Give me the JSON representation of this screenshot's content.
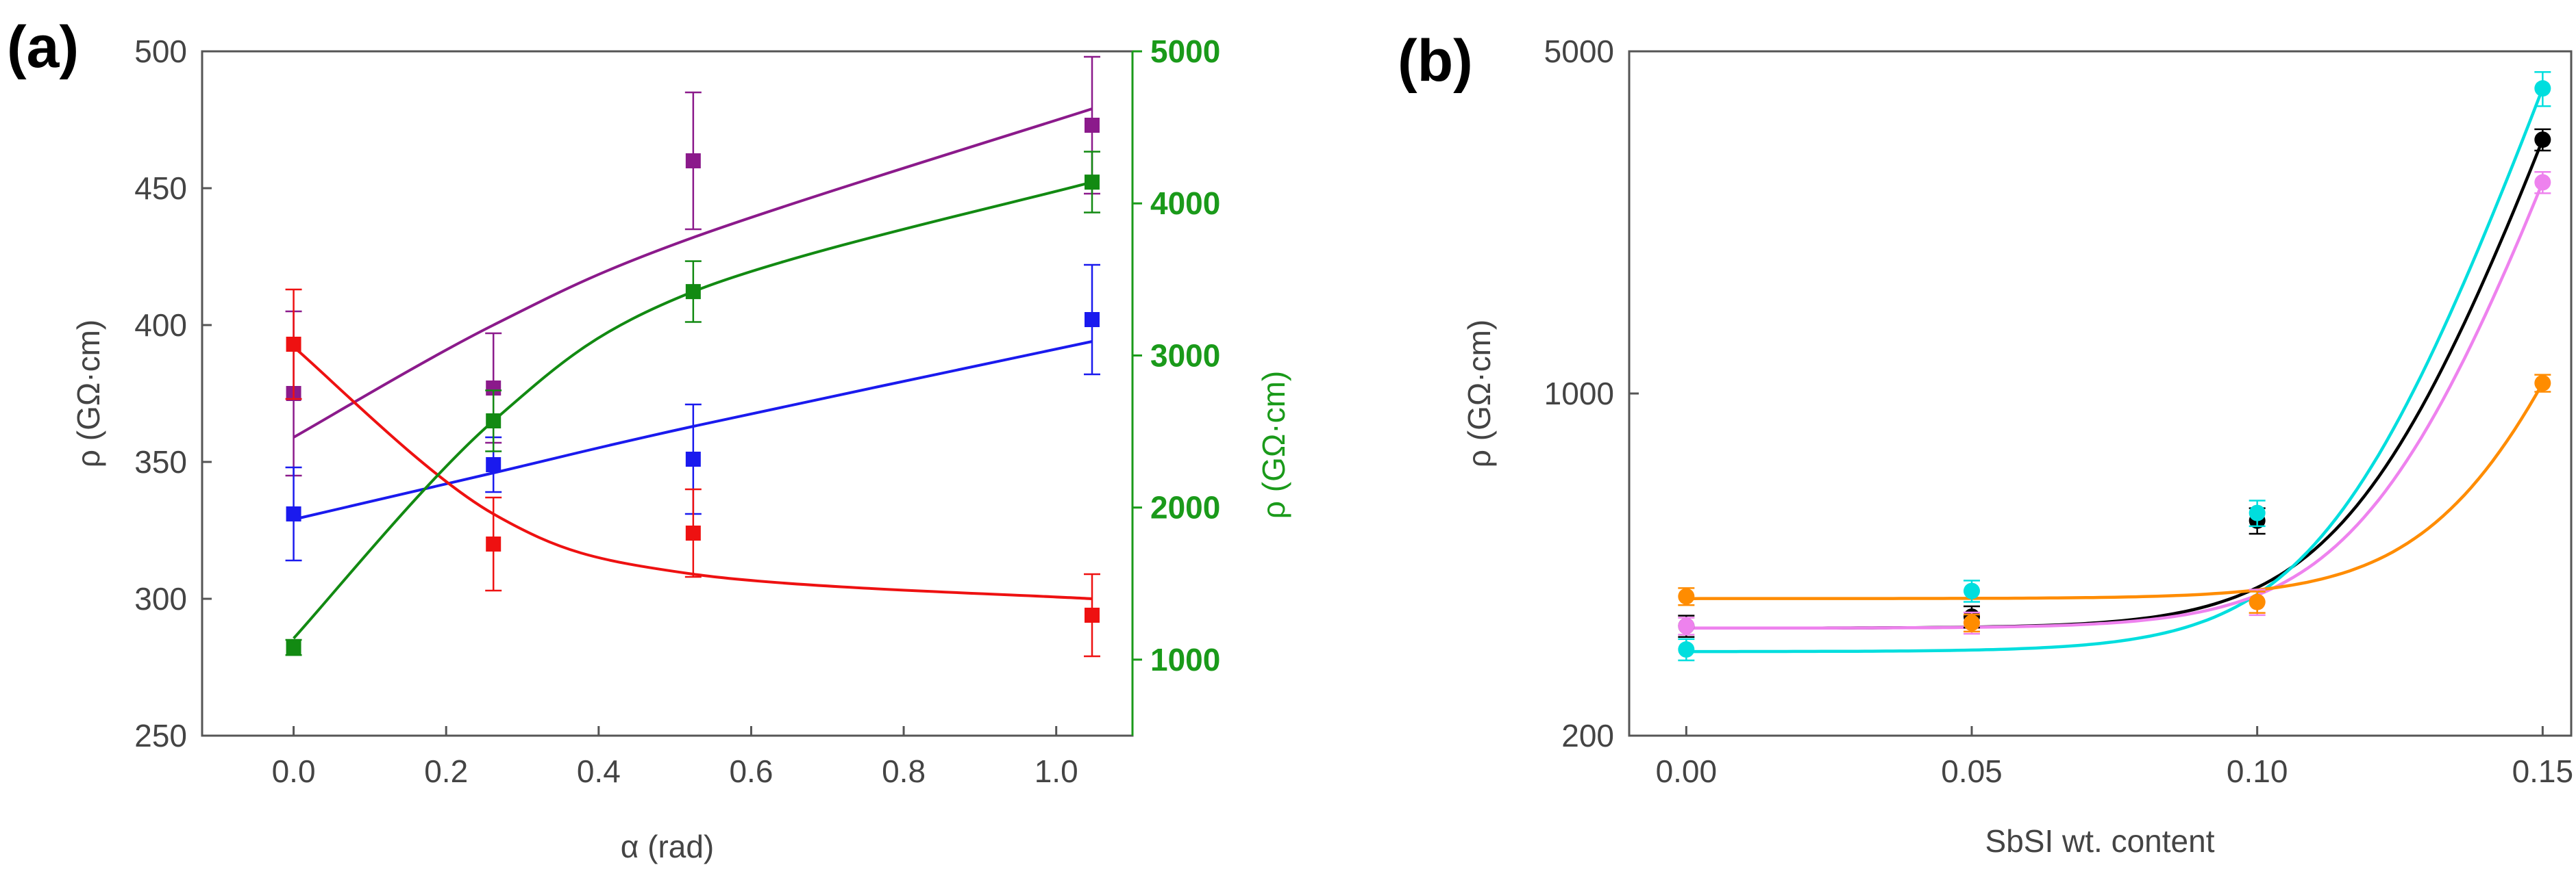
{
  "panel_labels": {
    "a": "(a)",
    "b": "(b)"
  },
  "chart_data": [
    {
      "type": "scatter",
      "panel": "(a)",
      "xlabel": "α (rad)",
      "ylabel_left": "ρ (GΩ·cm)",
      "ylabel_right": "ρ (GΩ·cm)",
      "xlim": [
        -0.12,
        1.1
      ],
      "ylim_left": [
        250,
        500
      ],
      "ylim_right": [
        500,
        5000
      ],
      "xticks": [
        "0.0",
        "0.2",
        "0.4",
        "0.6",
        "0.8",
        "1.0"
      ],
      "yticks_left": [
        "250",
        "300",
        "350",
        "400",
        "450",
        "500"
      ],
      "yticks_right": [
        "1000",
        "2000",
        "3000",
        "4000",
        "5000"
      ],
      "colors": {
        "purple": "#8b1a8b",
        "green": "#128a12",
        "blue": "#1a1aee",
        "red": "#ee1111",
        "right_axis": "#1a9a1a"
      },
      "series": [
        {
          "name": "purple",
          "axis": "left",
          "color": "#8b1a8b",
          "x": [
            0,
            0.262,
            0.524,
            1.047
          ],
          "y": [
            375,
            377,
            460,
            473
          ],
          "err": [
            30,
            20,
            25,
            25
          ],
          "fit": [
            359,
            400,
            432,
            479
          ]
        },
        {
          "name": "blue",
          "axis": "left",
          "color": "#1a1aee",
          "x": [
            0,
            0.262,
            0.524,
            1.047
          ],
          "y": [
            331,
            349,
            351,
            402
          ],
          "err": [
            17,
            10,
            20,
            20
          ],
          "fit": [
            329,
            346,
            363,
            394
          ]
        },
        {
          "name": "red",
          "axis": "left",
          "color": "#ee1111",
          "x": [
            0,
            0.262,
            0.524,
            1.047
          ],
          "y": [
            393,
            320,
            324,
            294
          ],
          "err": [
            20,
            17,
            16,
            15
          ],
          "fit": [
            392,
            331,
            309,
            300
          ]
        },
        {
          "name": "green",
          "axis": "right",
          "color": "#128a12",
          "x": [
            0,
            0.262,
            0.524,
            1.047
          ],
          "y": [
            1080,
            2570,
            3420,
            4140
          ],
          "err": [
            50,
            200,
            200,
            200
          ],
          "fit": [
            1140,
            2570,
            3420,
            4140
          ]
        }
      ]
    },
    {
      "type": "scatter",
      "panel": "(b)",
      "xlabel": "SbSI wt. content",
      "ylabel": "ρ (GΩ·cm)",
      "yscale": "log",
      "xlim": [
        -0.01,
        0.155
      ],
      "ylim": [
        200,
        5000
      ],
      "xticks": [
        "0.00",
        "0.05",
        "0.10",
        "0.15"
      ],
      "yticks": [
        "200",
        "1000",
        "5000"
      ],
      "series": [
        {
          "name": "black",
          "color": "#000000",
          "x": [
            0,
            0.05,
            0.1,
            0.15
          ],
          "y": [
            335,
            350,
            550,
            3300
          ],
          "err_frac": [
            0.05,
            0.05,
            0.06,
            0.05
          ]
        },
        {
          "name": "cyan",
          "color": "#00dede",
          "x": [
            0,
            0.05,
            0.1,
            0.15
          ],
          "y": [
            300,
            395,
            570,
            4200
          ],
          "err_frac": [
            0.05,
            0.05,
            0.06,
            0.08
          ]
        },
        {
          "name": "violet",
          "color": "#ee82ee",
          "x": [
            0,
            0.05,
            0.1,
            0.15
          ],
          "y": [
            335,
            340,
            375,
            2700
          ],
          "err_frac": [
            0.04,
            0.05,
            0.06,
            0.05
          ]
        },
        {
          "name": "orange",
          "color": "#ff8c00",
          "x": [
            0,
            0.05,
            0.1,
            0.15
          ],
          "y": [
            385,
            340,
            375,
            1050
          ],
          "err_frac": [
            0.04,
            0.04,
            0.05,
            0.04
          ]
        }
      ]
    }
  ]
}
